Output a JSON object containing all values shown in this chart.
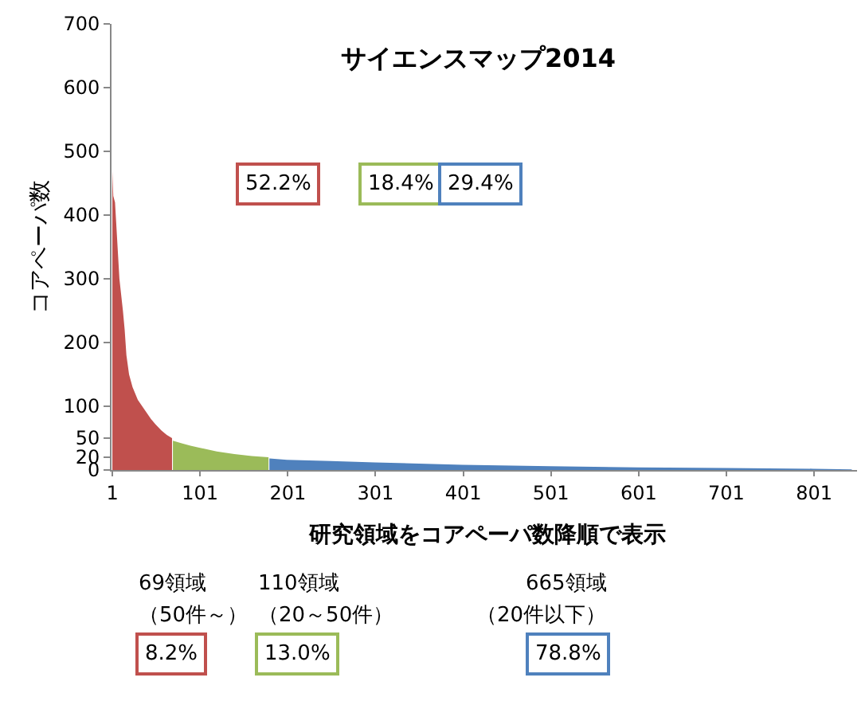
{
  "chart_data": {
    "type": "area",
    "title": "サイエンスマップ2014",
    "xlabel": "研究領域をコアペーパ数降順で表示",
    "ylabel": "コアペーパ数",
    "series": [
      {
        "color": "#c0504d",
        "x": [
          1,
          2,
          4,
          9,
          13,
          15,
          17,
          20,
          24,
          30,
          35,
          40,
          45,
          50,
          57,
          63,
          69
        ],
        "values": [
          470,
          430,
          420,
          300,
          250,
          220,
          180,
          150,
          130,
          110,
          100,
          90,
          80,
          72,
          62,
          55,
          50
        ]
      },
      {
        "color": "#9bbb59",
        "x": [
          70,
          80,
          90,
          100,
          120,
          140,
          160,
          179
        ],
        "values": [
          46,
          42,
          38,
          35,
          29,
          25,
          22,
          20
        ]
      },
      {
        "color": "#4f81bd",
        "x": [
          180,
          200,
          250,
          300,
          400,
          500,
          600,
          700,
          800,
          844
        ],
        "values": [
          18,
          16,
          14,
          12,
          8,
          6,
          4,
          3,
          2,
          1
        ]
      }
    ],
    "xlim": [
      0,
      850
    ],
    "xticks": [
      1,
      101,
      201,
      301,
      401,
      501,
      601,
      701,
      801
    ],
    "ylim": [
      0,
      700
    ],
    "yticks": [
      0,
      20,
      50,
      100,
      200,
      300,
      400,
      500,
      600,
      700
    ],
    "annotations": [
      "52.2%",
      "18.4%",
      "29.4%",
      "69領域",
      "（50件～）",
      "110領域",
      "（20～50件）",
      "665領域",
      "（20件以下）",
      "8.2%",
      "13.0%",
      "78.8%"
    ],
    "grid": false
  }
}
